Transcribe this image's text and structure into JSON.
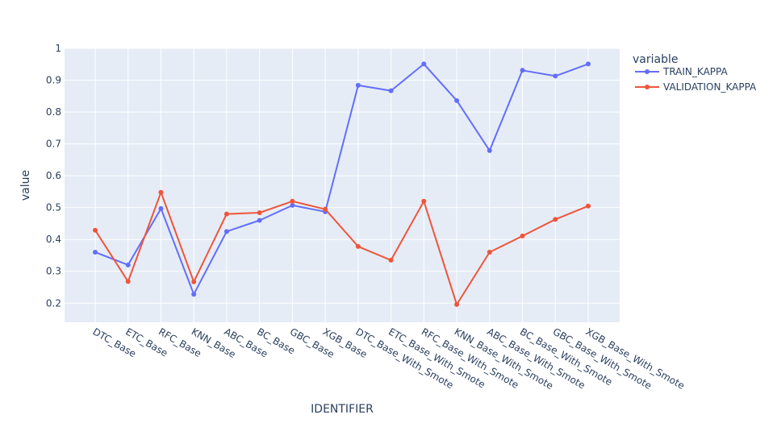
{
  "chart_data": {
    "type": "line",
    "title": "",
    "xlabel": "IDENTIFIER",
    "ylabel": "value",
    "categories": [
      "DTC_Base",
      "ETC_Base",
      "RFC_Base",
      "KNN_Base",
      "ABC_Base",
      "BC_Base",
      "GBC_Base",
      "XGB_Base",
      "DTC_Base_With_Smote",
      "ETC_Base_With_Smote",
      "RFC_Base_With_Smote",
      "KNN_Base_With_Smote",
      "ABC_Base_With_Smote",
      "BC_Base_With_Smote",
      "GBC_Base_With_Smote",
      "XGB_Base_With_Smote"
    ],
    "ylim": [
      0.14,
      1.0
    ],
    "yticks": [
      0.2,
      0.3,
      0.4,
      0.5,
      0.6,
      0.7,
      0.8,
      0.9,
      1.0
    ],
    "ytick_labels": [
      "0.2",
      "0.3",
      "0.4",
      "0.5",
      "0.6",
      "0.7",
      "0.8",
      "0.9",
      "1"
    ],
    "grid": true,
    "legend": {
      "title": "variable",
      "placement": "top-right"
    },
    "series": [
      {
        "name": "TRAIN_KAPPA",
        "color": "#636efa",
        "values": [
          0.36,
          0.32,
          0.497,
          0.228,
          0.425,
          0.46,
          0.507,
          0.487,
          0.884,
          0.867,
          0.951,
          0.836,
          0.679,
          0.931,
          0.913,
          0.951
        ]
      },
      {
        "name": "VALIDATION_KAPPA",
        "color": "#ef553b",
        "values": [
          0.429,
          0.268,
          0.548,
          0.267,
          0.48,
          0.484,
          0.52,
          0.495,
          0.378,
          0.335,
          0.52,
          0.196,
          0.36,
          0.411,
          0.463,
          0.505
        ]
      }
    ],
    "colors": {
      "plot_background": "#e5ecf6",
      "grid": "#ffffff",
      "text": "#2a3f5f"
    }
  }
}
